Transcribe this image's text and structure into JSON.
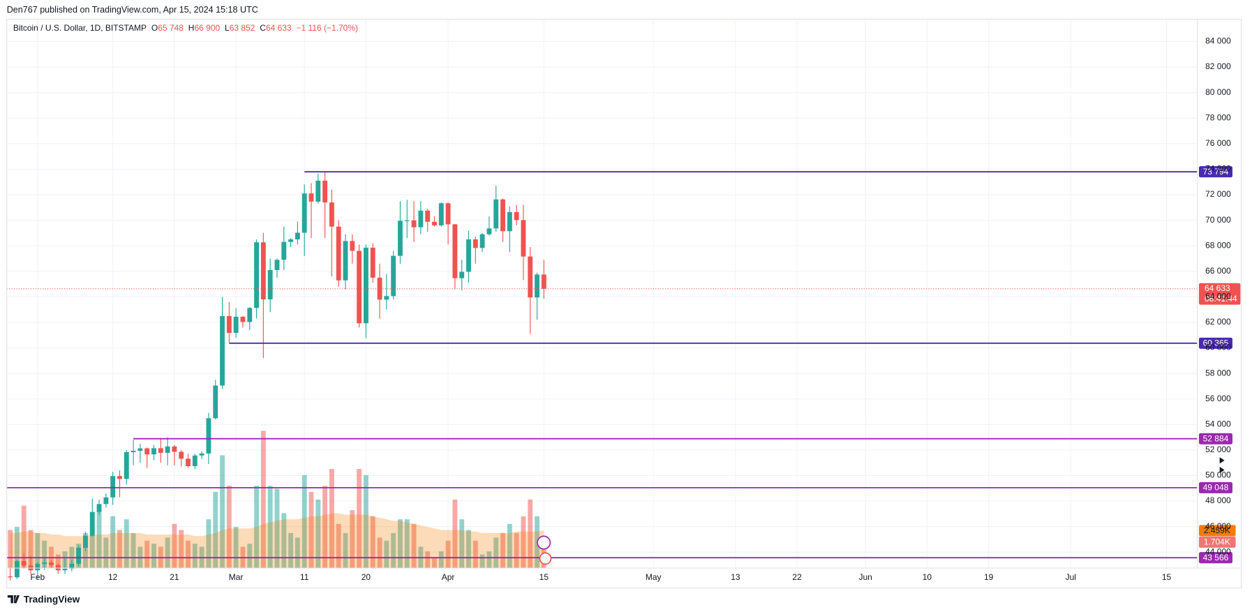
{
  "header": "Den767 published on TradingView.com, Apr 15, 2024 15:18 UTC",
  "footer": "TradingView",
  "chart_data": {
    "type": "candlestick",
    "title": "Bitcoin / U.S. Dollar, 1D, BITSTAMP",
    "legend": {
      "o": "O",
      "h": "H",
      "l": "L",
      "c": "C",
      "open": "65 748",
      "high": "66 900",
      "low": "63 852",
      "close": "64 633",
      "change": "−1 116 (−1.70%)"
    },
    "up_color": "#26a69a",
    "down_color": "#ef5350",
    "ohlc": [
      [
        42100,
        42800,
        41800,
        42030
      ],
      [
        42030,
        43400,
        41900,
        43300
      ],
      [
        43300,
        43900,
        42700,
        42950
      ],
      [
        42950,
        43700,
        42300,
        42580
      ],
      [
        42580,
        43200,
        41900,
        43080
      ],
      [
        43080,
        43500,
        42600,
        43190
      ],
      [
        43190,
        43400,
        42800,
        42990
      ],
      [
        42990,
        43100,
        42300,
        42580
      ],
      [
        42580,
        43500,
        42300,
        42700
      ],
      [
        42700,
        43400,
        42500,
        43090
      ],
      [
        43090,
        44500,
        42900,
        44340
      ],
      [
        44340,
        45600,
        44100,
        45290
      ],
      [
        45290,
        48200,
        45200,
        47150
      ],
      [
        47150,
        48100,
        46900,
        47770
      ],
      [
        47770,
        48600,
        47500,
        48290
      ],
      [
        48290,
        50300,
        47700,
        49960
      ],
      [
        49960,
        50400,
        48300,
        49740
      ],
      [
        49740,
        52000,
        49300,
        51830
      ],
      [
        51830,
        52800,
        50800,
        51940
      ],
      [
        51940,
        52500,
        51000,
        52130
      ],
      [
        52130,
        52200,
        50600,
        51660
      ],
      [
        51660,
        52400,
        51200,
        52140
      ],
      [
        52140,
        52900,
        51000,
        51780
      ],
      [
        51780,
        53000,
        50800,
        52280
      ],
      [
        52280,
        52400,
        50800,
        51860
      ],
      [
        51860,
        52000,
        50700,
        51320
      ],
      [
        51320,
        51700,
        50600,
        50740
      ],
      [
        50740,
        51700,
        50500,
        51570
      ],
      [
        51570,
        51900,
        51300,
        51730
      ],
      [
        51730,
        54900,
        50900,
        54490
      ],
      [
        54490,
        57500,
        54400,
        57050
      ],
      [
        57050,
        64000,
        56800,
        62490
      ],
      [
        62490,
        63600,
        60400,
        61170
      ],
      [
        61170,
        63100,
        60800,
        62440
      ],
      [
        62440,
        62500,
        61600,
        62030
      ],
      [
        62030,
        63200,
        61400,
        63130
      ],
      [
        63130,
        68500,
        62300,
        68270
      ],
      [
        68270,
        69000,
        59200,
        63800
      ],
      [
        63800,
        67000,
        62800,
        66100
      ],
      [
        66100,
        67000,
        65500,
        66900
      ],
      [
        66900,
        69500,
        66100,
        68300
      ],
      [
        68300,
        68600,
        67900,
        68500
      ],
      [
        68500,
        69900,
        68100,
        69020
      ],
      [
        69020,
        72800,
        67200,
        72100
      ],
      [
        72100,
        72900,
        68600,
        71460
      ],
      [
        71460,
        73650,
        71300,
        73100
      ],
      [
        73100,
        73794,
        68600,
        71390
      ],
      [
        71390,
        72400,
        65600,
        69500
      ],
      [
        69500,
        70000,
        64800,
        65290
      ],
      [
        65290,
        68900,
        64600,
        68370
      ],
      [
        68370,
        68900,
        66600,
        67600
      ],
      [
        67600,
        68100,
        61600,
        61930
      ],
      [
        61930,
        68100,
        60760,
        67850
      ],
      [
        67850,
        68200,
        65100,
        65500
      ],
      [
        65500,
        66600,
        62300,
        63780
      ],
      [
        63780,
        65800,
        63000,
        64060
      ],
      [
        64060,
        67600,
        63800,
        67210
      ],
      [
        67210,
        71500,
        66600,
        69960
      ],
      [
        69960,
        71600,
        68600,
        69990
      ],
      [
        69990,
        71500,
        68300,
        69450
      ],
      [
        69450,
        71500,
        68900,
        70750
      ],
      [
        70750,
        70900,
        69100,
        69880
      ],
      [
        69880,
        70300,
        69500,
        69600
      ],
      [
        69600,
        71400,
        69500,
        71330
      ],
      [
        71330,
        71400,
        68100,
        69680
      ],
      [
        69680,
        69700,
        64600,
        65460
      ],
      [
        65460,
        66900,
        64500,
        65960
      ],
      [
        65960,
        69200,
        65100,
        68500
      ],
      [
        68500,
        68700,
        66600,
        67830
      ],
      [
        67830,
        69000,
        67500,
        68900
      ],
      [
        68900,
        70300,
        68800,
        69360
      ],
      [
        69360,
        72700,
        69100,
        71630
      ],
      [
        71630,
        71700,
        68300,
        69140
      ],
      [
        69140,
        71100,
        67500,
        70640
      ],
      [
        70640,
        71200,
        69600,
        70010
      ],
      [
        70010,
        71200,
        65300,
        67160
      ],
      [
        67160,
        67900,
        61100,
        63950
      ],
      [
        63950,
        65900,
        62200,
        65749
      ],
      [
        65748,
        66900,
        63852,
        64633
      ]
    ],
    "volumes": [
      2.5,
      2.7,
      4.1,
      2.5,
      2.3,
      1.8,
      1.4,
      0.9,
      1.1,
      1.4,
      1.6,
      2.3,
      2.9,
      3.8,
      2.0,
      3.4,
      2.5,
      3.2,
      2.3,
      1.4,
      1.8,
      1.6,
      1.4,
      2.0,
      2.9,
      2.5,
      1.8,
      1.6,
      1.4,
      3.2,
      5.0,
      7.4,
      5.4,
      2.7,
      1.4,
      1.6,
      5.4,
      9.0,
      5.4,
      5.2,
      3.6,
      2.3,
      2.0,
      6.1,
      5.0,
      4.5,
      5.4,
      6.5,
      2.9,
      2.3,
      3.8,
      6.5,
      6.1,
      3.4,
      2.0,
      1.8,
      2.3,
      3.2,
      3.2,
      2.9,
      1.4,
      1.1,
      0.7,
      1.1,
      1.8,
      4.5,
      3.2,
      2.5,
      1.8,
      0.9,
      1.1,
      2.0,
      2.3,
      2.9,
      2.3,
      3.4,
      4.5,
      3.4,
      1.704
    ],
    "volume_ma": [
      2.3,
      2.3,
      2.4,
      2.4,
      2.3,
      2.3,
      2.2,
      2.2,
      2.1,
      2.1,
      2.1,
      2.1,
      2.2,
      2.2,
      2.2,
      2.3,
      2.3,
      2.3,
      2.3,
      2.3,
      2.2,
      2.2,
      2.2,
      2.2,
      2.2,
      2.2,
      2.2,
      2.1,
      2.1,
      2.2,
      2.3,
      2.5,
      2.6,
      2.6,
      2.6,
      2.6,
      2.7,
      2.9,
      3.0,
      3.1,
      3.2,
      3.2,
      3.2,
      3.3,
      3.4,
      3.4,
      3.5,
      3.6,
      3.6,
      3.5,
      3.5,
      3.5,
      3.5,
      3.4,
      3.3,
      3.2,
      3.1,
      3.1,
      3.0,
      2.9,
      2.8,
      2.7,
      2.6,
      2.5,
      2.5,
      2.5,
      2.5,
      2.4,
      2.4,
      2.3,
      2.3,
      2.3,
      2.3,
      2.3,
      2.4,
      2.4,
      2.4,
      2.4,
      2.459
    ],
    "volume_labels": {
      "volume": "1.704K",
      "ma": "2.459K"
    },
    "volume_color_ma": "#f57c00",
    "volume_lim": [
      0,
      36
    ],
    "price_label": "64 633",
    "countdown": "08:41:44",
    "levels": [
      {
        "value": 73794,
        "label": "73 794",
        "start": 43,
        "color": "#4a2ab0"
      },
      {
        "value": 60365,
        "label": "60 365",
        "start": 32,
        "color": "#4a2ab0"
      },
      {
        "value": 52884,
        "label": "52 884",
        "start": 18,
        "color": "#9c27b0"
      },
      {
        "value": 49048,
        "label": "49 048",
        "color": "#9c27b0"
      },
      {
        "value": 43566,
        "label": "43 566",
        "color": "#9c27b0"
      }
    ],
    "xlim": [
      -0.5,
      173.5
    ],
    "xticks": [
      {
        "value": 4,
        "label": "Feb"
      },
      {
        "value": 15,
        "label": "12"
      },
      {
        "value": 24,
        "label": "21"
      },
      {
        "value": 33,
        "label": "Mar"
      },
      {
        "value": 43,
        "label": "11"
      },
      {
        "value": 52,
        "label": "20"
      },
      {
        "value": 64,
        "label": "Apr"
      },
      {
        "value": 78,
        "label": "15"
      },
      {
        "value": 94,
        "label": "May"
      },
      {
        "value": 106,
        "label": "13"
      },
      {
        "value": 115,
        "label": "22"
      },
      {
        "value": 125,
        "label": "Jun"
      },
      {
        "value": 134,
        "label": "10"
      },
      {
        "value": 143,
        "label": "19"
      },
      {
        "value": 155,
        "label": "Jul"
      },
      {
        "value": 169,
        "label": "15"
      }
    ],
    "ylim": [
      42750,
      85750
    ],
    "yticks": [
      {
        "value": 44000,
        "label": "44 000"
      },
      {
        "value": 46000,
        "label": "46 000"
      },
      {
        "value": 48000,
        "label": "48 000"
      },
      {
        "value": 50000,
        "label": "50 000"
      },
      {
        "value": 52000,
        "label": "52 000"
      },
      {
        "value": 54000,
        "label": "54 000"
      },
      {
        "value": 56000,
        "label": "56 000"
      },
      {
        "value": 58000,
        "label": "58 000"
      },
      {
        "value": 60000,
        "label": "60 000"
      },
      {
        "value": 62000,
        "label": "62 000"
      },
      {
        "value": 64000,
        "label": "64 000"
      },
      {
        "value": 66000,
        "label": "66 000"
      },
      {
        "value": 68000,
        "label": "68 000"
      },
      {
        "value": 70000,
        "label": "70 000"
      },
      {
        "value": 72000,
        "label": "72 000"
      },
      {
        "value": 74000,
        "label": "74 000"
      },
      {
        "value": 76000,
        "label": "76 000"
      },
      {
        "value": 78000,
        "label": "78 000"
      },
      {
        "value": 80000,
        "label": "80 000"
      },
      {
        "value": 82000,
        "label": "82 000"
      },
      {
        "value": 84000,
        "label": "84 000"
      }
    ],
    "grid": true
  }
}
